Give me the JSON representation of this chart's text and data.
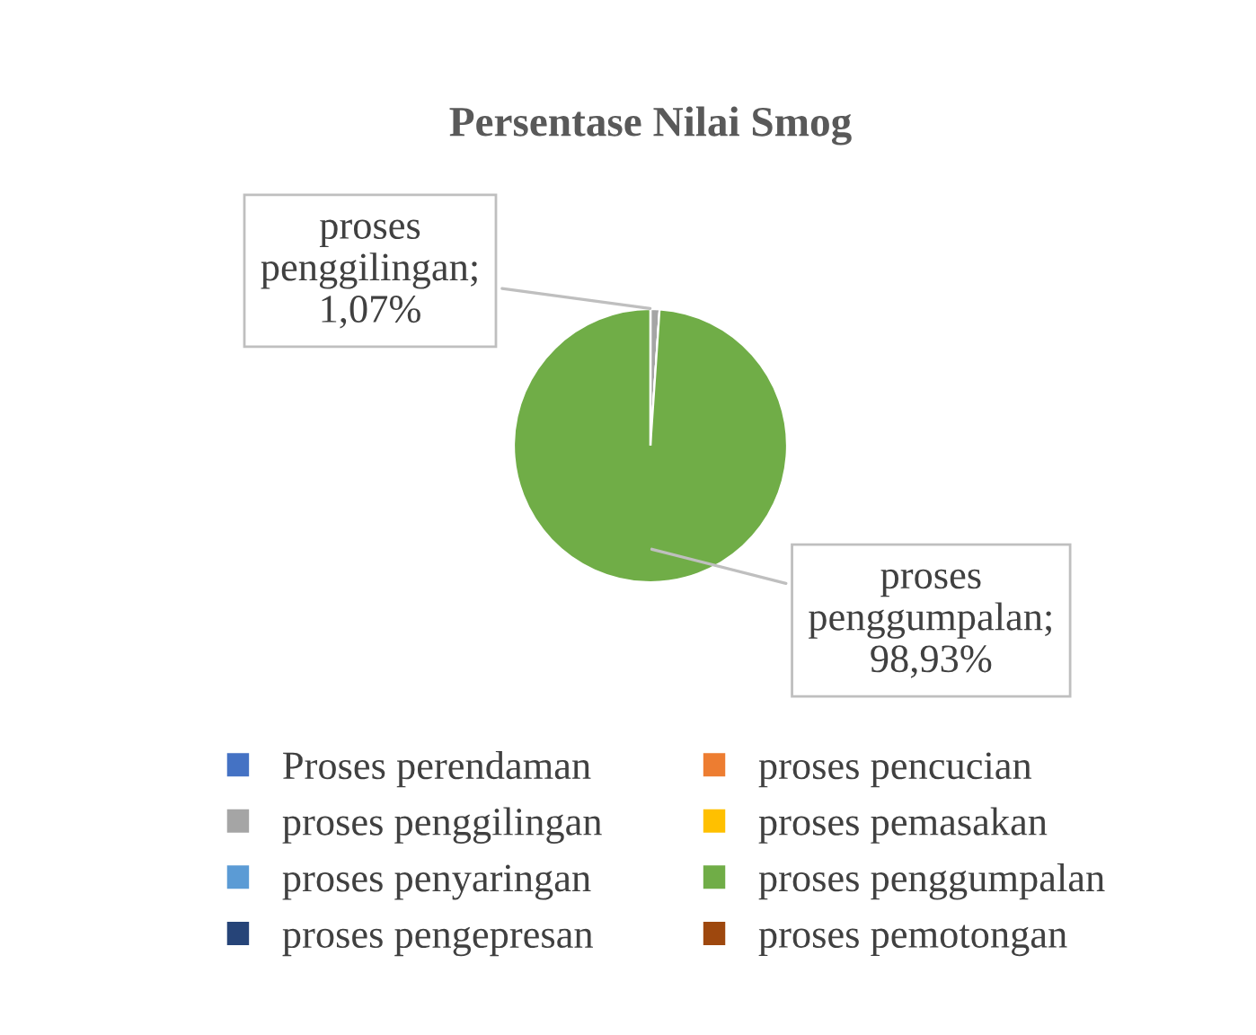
{
  "chart_data": {
    "type": "pie",
    "title": "Persentase Nilai Smog",
    "categories": [
      "Proses perendaman",
      "proses pencucian",
      "proses penggilingan",
      "proses pemasakan",
      "proses penyaringan",
      "proses penggumpalan",
      "proses pengepresan",
      "proses pemotongan"
    ],
    "values": [
      0,
      0,
      1.07,
      0,
      0,
      98.93,
      0,
      0
    ],
    "colors": [
      "#4472c4",
      "#ed7d31",
      "#a5a5a5",
      "#ffc000",
      "#5b9bd5",
      "#70ad47",
      "#264478",
      "#9e480e"
    ],
    "value_labels": [
      null,
      null,
      "proses penggilingan; 1,07%",
      null,
      null,
      "proses penggumpalan; 98,93%",
      null,
      null
    ],
    "legend": "bottom"
  }
}
